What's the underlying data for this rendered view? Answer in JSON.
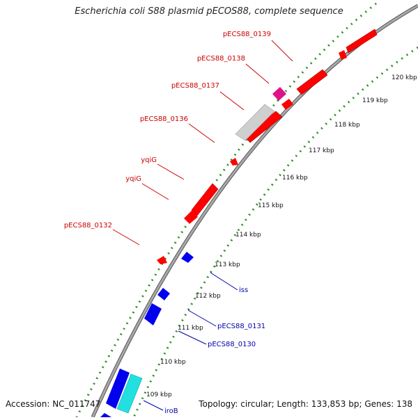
{
  "title": "Escherichia coli S88 plasmid pECOS88, complete sequence",
  "footer": {
    "accession": "Accession: NC_011747",
    "summary": "Topology: circular; Length: 133,853 bp; Genes: 138"
  },
  "colors": {
    "forward_gene": "#ff0000",
    "reverse_gene": "#0000ee",
    "other_gene": "#c8c8c8",
    "mobile_gene": "#e0128a",
    "rna_gene": "#22dddd",
    "backbone": "#8a8a8a",
    "tick_dots": "#2e8b22",
    "label_forward": "#cc0000",
    "label_reverse": "#0000aa"
  },
  "scale": {
    "ticks": [
      {
        "kbp": 109,
        "label": "109 kbp"
      },
      {
        "kbp": 110,
        "label": "110 kbp"
      },
      {
        "kbp": 111,
        "label": "111 kbp"
      },
      {
        "kbp": 112,
        "label": "112 kbp"
      },
      {
        "kbp": 113,
        "label": "113 kbp"
      },
      {
        "kbp": 114,
        "label": "114 kbp"
      },
      {
        "kbp": 115,
        "label": "115 kbp"
      },
      {
        "kbp": 116,
        "label": "116 kbp"
      },
      {
        "kbp": 117,
        "label": "117 kbp"
      },
      {
        "kbp": 118,
        "label": "118 kbp"
      },
      {
        "kbp": 119,
        "label": "119 kbp"
      },
      {
        "kbp": 120,
        "label": "120 kbp"
      }
    ]
  },
  "genes": [
    {
      "label": "pECS88_0139",
      "strand": "forward"
    },
    {
      "label": "pECS88_0138",
      "strand": "forward"
    },
    {
      "label": "pECS88_0137",
      "strand": "forward"
    },
    {
      "label": "pECS88_0136",
      "strand": "forward"
    },
    {
      "label": "yqiG",
      "strand": "forward"
    },
    {
      "label": "yqiG",
      "strand": "forward"
    },
    {
      "label": "pECS88_0132",
      "strand": "forward"
    },
    {
      "label": "iss",
      "strand": "reverse"
    },
    {
      "label": "pECS88_0131",
      "strand": "reverse"
    },
    {
      "label": "pECS88_0130",
      "strand": "reverse"
    },
    {
      "label": "iroB",
      "strand": "reverse"
    }
  ]
}
